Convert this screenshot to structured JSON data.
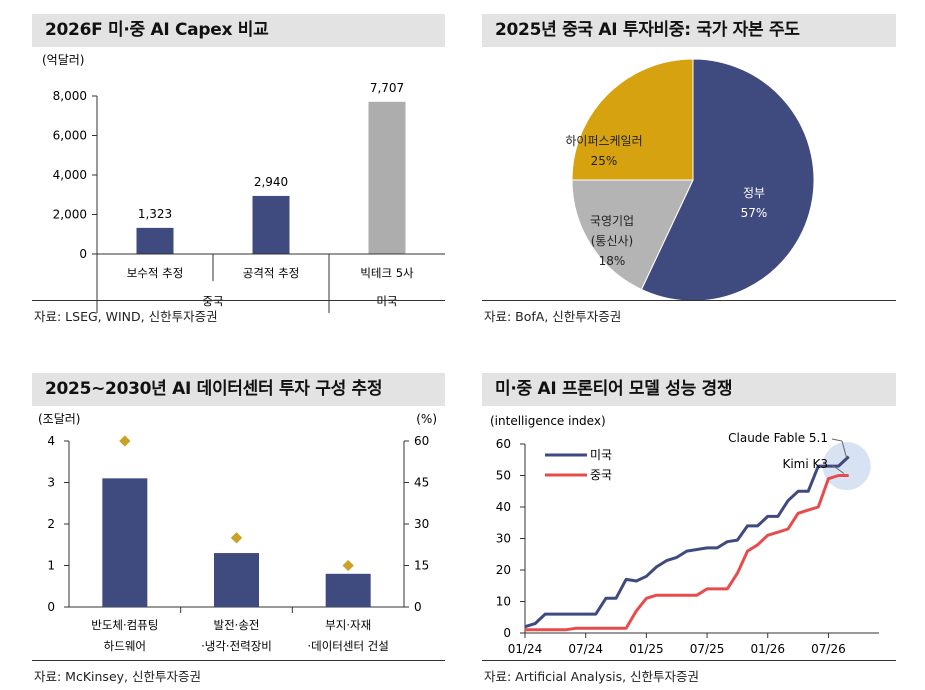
{
  "panels": {
    "p1": {
      "title": "2026F 미·중 AI Capex 비교",
      "source": "자료: LSEG, WIND, 신한투자증권",
      "chart_data": {
        "type": "bar",
        "unit_label": "(억달러)",
        "categories": [
          "보수적 추정",
          "공격적 추정",
          "빅테크 5사"
        ],
        "groups": [
          {
            "label": "중국",
            "categories": [
              "보수적 추정",
              "공격적 추정"
            ]
          },
          {
            "label": "미국",
            "categories": [
              "빅테크 5사"
            ]
          }
        ],
        "values": [
          1323,
          2940,
          7707
        ],
        "value_labels": [
          "1,323",
          "2,940",
          "7,707"
        ],
        "colors": [
          "#3f4a7e",
          "#3f4a7e",
          "#adadad"
        ],
        "ylim": [
          0,
          8000
        ],
        "yticks": [
          0,
          2000,
          4000,
          6000,
          8000
        ],
        "ytick_labels": [
          "0",
          "2,000",
          "4,000",
          "6,000",
          "8,000"
        ]
      }
    },
    "p2": {
      "title": "2025년 중국 AI 투자비중: 국가 자본 주도",
      "source": "자료: BofA, 신한투자증권",
      "chart_data": {
        "type": "pie",
        "slices": [
          {
            "label": "정부",
            "value": 57,
            "value_label": "57%",
            "color": "#3f4a7e"
          },
          {
            "label": "국영기업\n(통신사)",
            "value": 18,
            "value_label": "18%",
            "color": "#b4b4b4"
          },
          {
            "label": "하이퍼스케일러",
            "value": 25,
            "value_label": "25%",
            "color": "#d6a20f"
          }
        ]
      }
    },
    "p3": {
      "title": "2025~2030년 AI 데이터센터 투자 구성 추정",
      "source": "자료: McKinsey, 신한투자증권",
      "chart_data": {
        "type": "bar",
        "left_unit": "(조달러)",
        "right_unit": "(%)",
        "categories": [
          [
            "반도체·컴퓨팅",
            "하드웨어"
          ],
          [
            "발전·송전",
            "·냉각·전력장비"
          ],
          [
            "부지·자재",
            "·데이터센터 건설"
          ]
        ],
        "series": [
          {
            "axis": "left",
            "type": "bar",
            "values": [
              3.1,
              1.3,
              0.8
            ],
            "color": "#3f4a7e"
          },
          {
            "axis": "right",
            "type": "scatter",
            "values": [
              60,
              25,
              15
            ],
            "color": "#c9a227"
          }
        ],
        "ylim_left": [
          0,
          4
        ],
        "yticks_left": [
          0,
          1,
          2,
          3,
          4
        ],
        "ylim_right": [
          0,
          60
        ],
        "yticks_right": [
          0,
          15,
          30,
          45,
          60
        ]
      }
    },
    "p4": {
      "title": "미·중 AI 프론티어 모델 성능 경쟁",
      "source": "자료: Artificial Analysis, 신한투자증권",
      "chart_data": {
        "type": "line",
        "ylabel": "(intelligence  index)",
        "ylim": [
          0,
          60
        ],
        "yticks": [
          0,
          10,
          20,
          30,
          40,
          50,
          60
        ],
        "xlim": [
          "2024-01",
          "2026-12"
        ],
        "xticks": [
          "01/24",
          "07/24",
          "01/25",
          "07/25",
          "01/26",
          "07/26"
        ],
        "annotations": [
          "Claude Fable 5.1",
          "Kimi K3"
        ],
        "series": [
          {
            "name": "미국",
            "color": "#3f4a7e",
            "points": [
              [
                "2024-01",
                2
              ],
              [
                "2024-02",
                3
              ],
              [
                "2024-03",
                6
              ],
              [
                "2024-04",
                6
              ],
              [
                "2024-05",
                6
              ],
              [
                "2024-06",
                6
              ],
              [
                "2024-07",
                6
              ],
              [
                "2024-08",
                6
              ],
              [
                "2024-09",
                11
              ],
              [
                "2024-10",
                11
              ],
              [
                "2024-11",
                17
              ],
              [
                "2024-12",
                16.5
              ],
              [
                "2025-01",
                18
              ],
              [
                "2025-02",
                21
              ],
              [
                "2025-03",
                23
              ],
              [
                "2025-04",
                24
              ],
              [
                "2025-05",
                26
              ],
              [
                "2025-06",
                26.5
              ],
              [
                "2025-07",
                27
              ],
              [
                "2025-08",
                27
              ],
              [
                "2025-09",
                29
              ],
              [
                "2025-10",
                29.5
              ],
              [
                "2025-11",
                34
              ],
              [
                "2025-12",
                34
              ],
              [
                "2026-01",
                37
              ],
              [
                "2026-02",
                37
              ],
              [
                "2026-03",
                42
              ],
              [
                "2026-04",
                45
              ],
              [
                "2026-05",
                45
              ],
              [
                "2026-06",
                53
              ],
              [
                "2026-07",
                53
              ],
              [
                "2026-08",
                53
              ],
              [
                "2026-09",
                56
              ]
            ]
          },
          {
            "name": "중국",
            "color": "#e84b4b",
            "points": [
              [
                "2024-01",
                1
              ],
              [
                "2024-02",
                1
              ],
              [
                "2024-03",
                1
              ],
              [
                "2024-04",
                1
              ],
              [
                "2024-05",
                1
              ],
              [
                "2024-06",
                1.5
              ],
              [
                "2024-07",
                1.5
              ],
              [
                "2024-08",
                1.5
              ],
              [
                "2024-09",
                1.5
              ],
              [
                "2024-10",
                1.5
              ],
              [
                "2024-11",
                1.5
              ],
              [
                "2024-12",
                7
              ],
              [
                "2025-01",
                11
              ],
              [
                "2025-02",
                12
              ],
              [
                "2025-03",
                12
              ],
              [
                "2025-04",
                12
              ],
              [
                "2025-05",
                12
              ],
              [
                "2025-06",
                12
              ],
              [
                "2025-07",
                14
              ],
              [
                "2025-08",
                14
              ],
              [
                "2025-09",
                14
              ],
              [
                "2025-10",
                19
              ],
              [
                "2025-11",
                26
              ],
              [
                "2025-12",
                28
              ],
              [
                "2026-01",
                31
              ],
              [
                "2026-02",
                32
              ],
              [
                "2026-03",
                33
              ],
              [
                "2026-04",
                38
              ],
              [
                "2026-05",
                39
              ],
              [
                "2026-06",
                40
              ],
              [
                "2026-07",
                49
              ],
              [
                "2026-08",
                50
              ],
              [
                "2026-09",
                50
              ]
            ]
          }
        ]
      }
    }
  }
}
